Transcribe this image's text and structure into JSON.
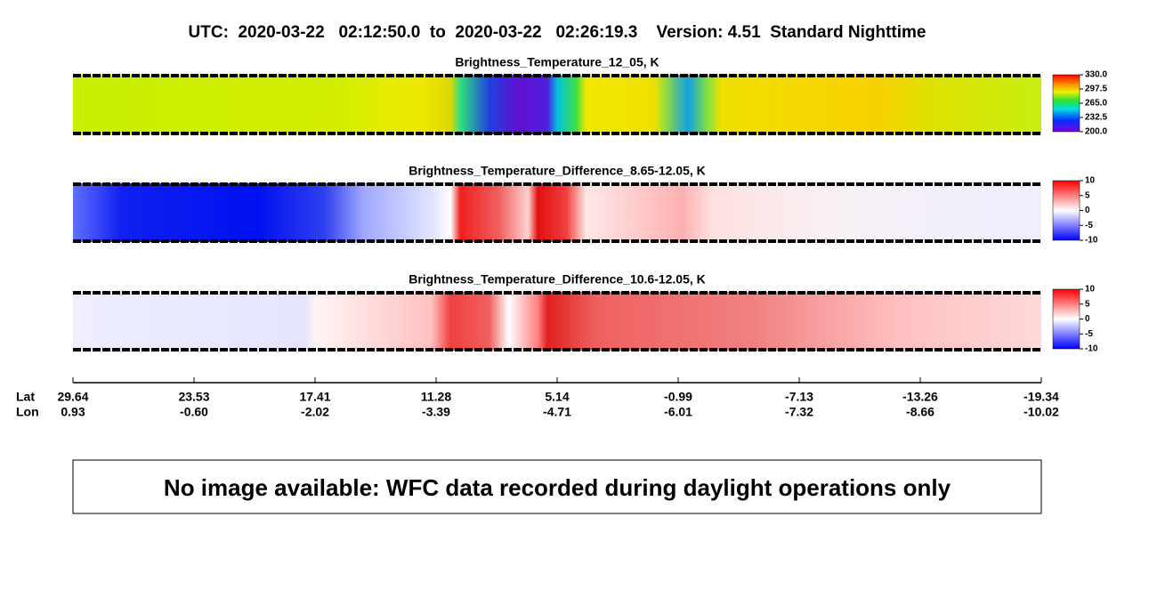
{
  "title": "UTC:  2020-03-22   02:12:50.0  to  2020-03-22   02:26:19.3    Version: 4.51  Standard Nighttime",
  "panels": [
    {
      "title": "Brightness_Temperature_12_05, K",
      "colorbar": {
        "lim": [
          200,
          330
        ],
        "ticks": [
          {
            "value": 330,
            "label": "330.0"
          },
          {
            "value": 297.5,
            "label": "297.5"
          },
          {
            "value": 265,
            "label": "265.0"
          },
          {
            "value": 232.5,
            "label": "232.5"
          },
          {
            "value": 200,
            "label": "200.0"
          }
        ]
      }
    },
    {
      "title": "Brightness_Temperature_Difference_8.65-12.05, K",
      "colorbar": {
        "lim": [
          -10,
          10
        ],
        "ticks": [
          10,
          5,
          0,
          -5,
          -10
        ]
      }
    },
    {
      "title": "Brightness_Temperature_Difference_10.6-12.05, K",
      "colorbar": {
        "lim": [
          -10,
          10
        ],
        "ticks": [
          10,
          5,
          0,
          -5,
          -10
        ]
      }
    }
  ],
  "axis": {
    "rows": [
      "Lat",
      "Lon"
    ],
    "lat": [
      "29.64",
      "23.53",
      "17.41",
      "11.28",
      "5.14",
      "-0.99",
      "-7.13",
      "-13.26",
      "-19.34"
    ],
    "lon": [
      "0.93",
      "-0.60",
      "-2.02",
      "-3.39",
      "-4.71",
      "-6.01",
      "-7.32",
      "-8.66",
      "-10.02"
    ]
  },
  "message": "No image available: WFC data recorded during daylight operations only"
}
